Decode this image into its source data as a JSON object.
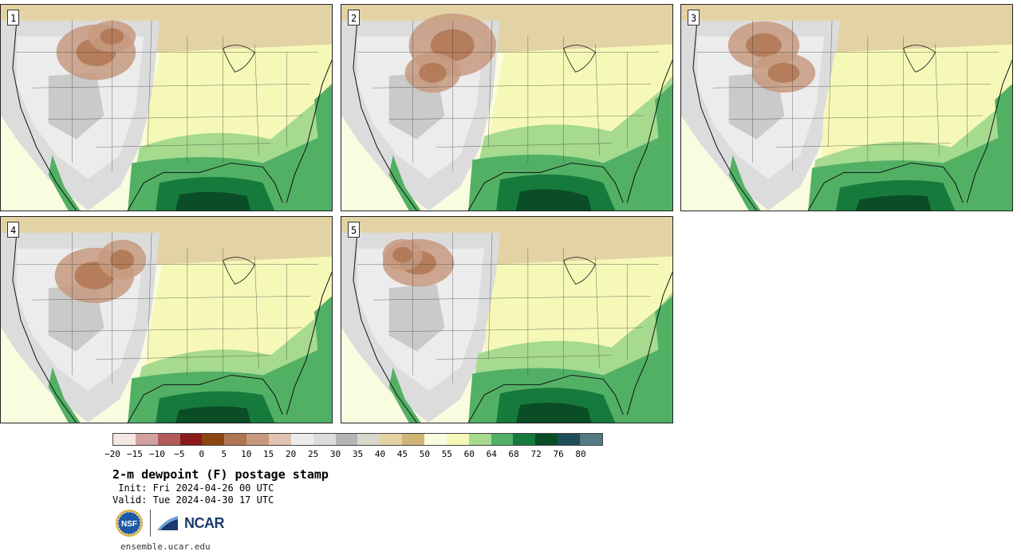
{
  "panels": [
    {
      "label": "1"
    },
    {
      "label": "2"
    },
    {
      "label": "3"
    },
    {
      "label": "4"
    },
    {
      "label": "5"
    }
  ],
  "colorbar": {
    "colors": [
      "#f3e6e3",
      "#d3a0a0",
      "#b25b5b",
      "#8b1a1a",
      "#8b4513",
      "#b07552",
      "#c79a80",
      "#dfc2b0",
      "#ececec",
      "#dcdcdc",
      "#b4b4b4",
      "#d9d6cc",
      "#e3d3a4",
      "#cfb476",
      "#fafce0",
      "#f6f8b8",
      "#a6da8e",
      "#52b065",
      "#167a3c",
      "#0a4d26",
      "#1e4e5a",
      "#527a80"
    ],
    "tick_labels": [
      "−20",
      "−15",
      "−10",
      "−5",
      "0",
      "5",
      "10",
      "15",
      "20",
      "25",
      "30",
      "35",
      "40",
      "45",
      "50",
      "55",
      "60",
      "64",
      "68",
      "72",
      "76",
      "80"
    ]
  },
  "title": "2-m dewpoint (F) postage stamp",
  "init_line": " Init: Fri 2024-04-26 00 UTC",
  "valid_line": "Valid: Tue 2024-04-30 17 UTC",
  "logos": {
    "nsf": "NSF",
    "ncar": "NCAR"
  },
  "url": "ensemble.ucar.edu"
}
